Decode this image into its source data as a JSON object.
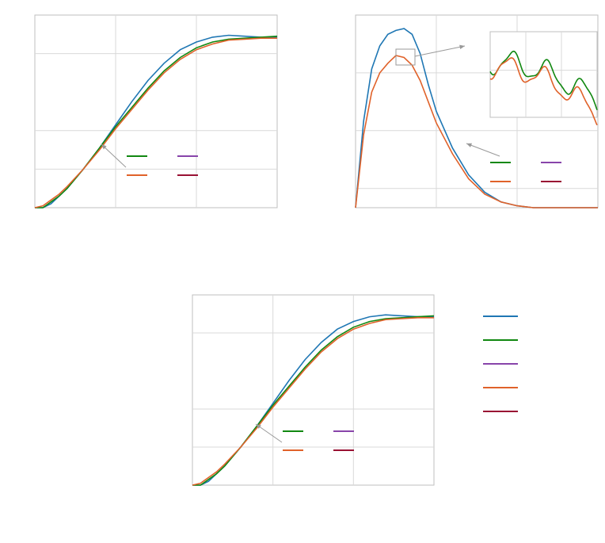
{
  "colors": {
    "blue": "#1f77b4",
    "green": "#118811",
    "purple": "#8844aa",
    "orange": "#e0622a",
    "crimson": "#991133",
    "grid": "#d9d9d9",
    "axes": "#bfbfbf",
    "annotation": "#999999"
  },
  "chart_data": [
    {
      "type": "line",
      "xlim": [
        0,
        3
      ],
      "ylim": [
        0,
        1.0
      ],
      "grid": true,
      "legend": {
        "placement": "center",
        "entries": []
      },
      "series": [
        {
          "color": "#1f77b4",
          "x": [
            0,
            0.1,
            0.2,
            0.3,
            0.4,
            0.6,
            0.8,
            1.0,
            1.2,
            1.4,
            1.6,
            1.8,
            2.0,
            2.2,
            2.4,
            2.6,
            2.8,
            3.0
          ],
          "y": [
            0,
            0.0,
            0.02,
            0.06,
            0.1,
            0.2,
            0.31,
            0.43,
            0.55,
            0.66,
            0.75,
            0.82,
            0.86,
            0.885,
            0.895,
            0.89,
            0.885,
            0.885
          ]
        },
        {
          "color": "#118811",
          "x": [
            0,
            0.1,
            0.2,
            0.3,
            0.4,
            0.6,
            0.8,
            1.0,
            1.2,
            1.4,
            1.6,
            1.8,
            2.0,
            2.2,
            2.4,
            2.6,
            2.8,
            3.0
          ],
          "y": [
            0,
            0.0,
            0.03,
            0.06,
            0.1,
            0.2,
            0.31,
            0.42,
            0.52,
            0.62,
            0.71,
            0.78,
            0.83,
            0.86,
            0.875,
            0.88,
            0.885,
            0.89
          ]
        },
        {
          "color": "#e0622a",
          "x": [
            0,
            0.1,
            0.2,
            0.3,
            0.4,
            0.6,
            0.8,
            1.0,
            1.2,
            1.4,
            1.6,
            1.8,
            2.0,
            2.2,
            2.4,
            2.6,
            2.8,
            3.0
          ],
          "y": [
            0,
            0.01,
            0.04,
            0.07,
            0.11,
            0.2,
            0.3,
            0.41,
            0.51,
            0.61,
            0.7,
            0.77,
            0.82,
            0.85,
            0.87,
            0.875,
            0.88,
            0.88
          ]
        }
      ]
    },
    {
      "type": "line",
      "xlim": [
        0,
        3
      ],
      "ylim": [
        0,
        1.0
      ],
      "grid": true,
      "inset": true,
      "legend": {
        "placement": "bottom-right",
        "entries": []
      },
      "series": [
        {
          "color": "#1f77b4",
          "x": [
            0,
            0.1,
            0.2,
            0.3,
            0.4,
            0.5,
            0.6,
            0.7,
            0.8,
            0.9,
            1.0,
            1.2,
            1.4,
            1.6,
            1.8,
            2.0,
            2.2,
            2.4,
            2.6,
            3.0
          ],
          "y": [
            0,
            0.45,
            0.72,
            0.84,
            0.9,
            0.92,
            0.93,
            0.9,
            0.8,
            0.64,
            0.5,
            0.31,
            0.17,
            0.08,
            0.03,
            0.01,
            0.0,
            0.0,
            0.0,
            0.0
          ]
        },
        {
          "color": "#e0622a",
          "x": [
            0,
            0.1,
            0.2,
            0.3,
            0.4,
            0.5,
            0.6,
            0.7,
            0.8,
            0.9,
            1.0,
            1.2,
            1.4,
            1.6,
            1.8,
            2.0,
            2.2,
            2.4,
            2.6,
            3.0
          ],
          "y": [
            0,
            0.38,
            0.6,
            0.7,
            0.75,
            0.79,
            0.78,
            0.74,
            0.66,
            0.55,
            0.44,
            0.28,
            0.15,
            0.07,
            0.03,
            0.01,
            0.0,
            0.0,
            0.0,
            0.0
          ]
        }
      ]
    },
    {
      "type": "line",
      "xlim": [
        0,
        3
      ],
      "ylim": [
        0,
        1.0
      ],
      "grid": true,
      "legend": {
        "placement": "center",
        "entries": []
      },
      "series": [
        {
          "color": "#1f77b4",
          "x": [
            0,
            0.1,
            0.2,
            0.3,
            0.4,
            0.6,
            0.8,
            1.0,
            1.2,
            1.4,
            1.6,
            1.8,
            2.0,
            2.2,
            2.4,
            2.6,
            2.8,
            3.0
          ],
          "y": [
            0,
            0.0,
            0.02,
            0.06,
            0.1,
            0.2,
            0.31,
            0.43,
            0.55,
            0.66,
            0.75,
            0.82,
            0.86,
            0.885,
            0.895,
            0.89,
            0.885,
            0.885
          ]
        },
        {
          "color": "#118811",
          "x": [
            0,
            0.1,
            0.2,
            0.3,
            0.4,
            0.6,
            0.8,
            1.0,
            1.2,
            1.4,
            1.6,
            1.8,
            2.0,
            2.2,
            2.4,
            2.6,
            2.8,
            3.0
          ],
          "y": [
            0,
            0.0,
            0.03,
            0.06,
            0.1,
            0.2,
            0.31,
            0.42,
            0.52,
            0.62,
            0.71,
            0.78,
            0.83,
            0.86,
            0.875,
            0.88,
            0.885,
            0.89
          ]
        },
        {
          "color": "#e0622a",
          "x": [
            0,
            0.1,
            0.2,
            0.3,
            0.4,
            0.6,
            0.8,
            1.0,
            1.2,
            1.4,
            1.6,
            1.8,
            2.0,
            2.2,
            2.4,
            2.6,
            2.8,
            3.0
          ],
          "y": [
            0,
            0.01,
            0.04,
            0.07,
            0.11,
            0.2,
            0.3,
            0.41,
            0.51,
            0.61,
            0.7,
            0.77,
            0.82,
            0.85,
            0.87,
            0.875,
            0.88,
            0.88
          ]
        }
      ]
    }
  ],
  "shared_legend": {
    "placement": "right",
    "swatches": [
      "#1f77b4",
      "#118811",
      "#8844aa",
      "#e0622a",
      "#991133"
    ]
  }
}
